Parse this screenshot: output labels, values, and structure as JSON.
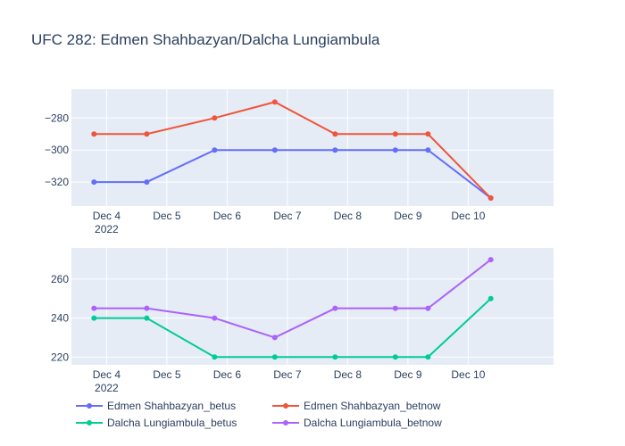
{
  "chart_data": {
    "type": "line",
    "title": "UFC 282: Edmen Shahbazyan/Dalcha Lungiambula",
    "x_tick_labels": [
      {
        "date": "2022-12-04",
        "label": "Dec 4",
        "sub": "2022"
      },
      {
        "date": "2022-12-05",
        "label": "Dec 5",
        "sub": ""
      },
      {
        "date": "2022-12-06",
        "label": "Dec 6",
        "sub": ""
      },
      {
        "date": "2022-12-07",
        "label": "Dec 7",
        "sub": ""
      },
      {
        "date": "2022-12-08",
        "label": "Dec 8",
        "sub": ""
      },
      {
        "date": "2022-12-09",
        "label": "Dec 9",
        "sub": ""
      },
      {
        "date": "2022-12-10",
        "label": "Dec 10",
        "sub": ""
      }
    ],
    "x_range": [
      "2022-12-03T10:00",
      "2022-12-11T10:00"
    ],
    "x": [
      "2022-12-03T19:00",
      "2022-12-04T16:00",
      "2022-12-05T19:00",
      "2022-12-06T19:00",
      "2022-12-07T19:00",
      "2022-12-08T19:00",
      "2022-12-09T08:00",
      "2022-12-10T09:00"
    ],
    "panels": [
      {
        "ylim": [
          -335,
          -262
        ],
        "yticks": [
          -320,
          -300,
          -280
        ],
        "y_tick_labels": [
          "−320",
          "−300",
          "−280"
        ],
        "series": [
          {
            "name": "Edmen Shahbazyan_betus",
            "color": "#636efa",
            "values": [
              -320,
              -320,
              -300,
              -300,
              -300,
              -300,
              -300,
              -330
            ]
          },
          {
            "name": "Edmen Shahbazyan_betnow",
            "color": "#ef553b",
            "values": [
              -290,
              -290,
              -280,
              -270,
              -290,
              -290,
              -290,
              -330
            ]
          }
        ]
      },
      {
        "ylim": [
          216,
          276
        ],
        "yticks": [
          220,
          240,
          260
        ],
        "y_tick_labels": [
          "220",
          "240",
          "260"
        ],
        "series": [
          {
            "name": "Dalcha Lungiambula_betus",
            "color": "#00cc96",
            "values": [
              240,
              240,
              220,
              220,
              220,
              220,
              220,
              250
            ]
          },
          {
            "name": "Dalcha Lungiambula_betnow",
            "color": "#ab63fa",
            "values": [
              245,
              245,
              240,
              230,
              245,
              245,
              245,
              270
            ]
          }
        ]
      }
    ],
    "legend": {
      "placement": "bottom",
      "entries": [
        {
          "name": "Edmen Shahbazyan_betus",
          "color": "#636efa"
        },
        {
          "name": "Edmen Shahbazyan_betnow",
          "color": "#ef553b"
        },
        {
          "name": "Dalcha Lungiambula_betus",
          "color": "#00cc96"
        },
        {
          "name": "Dalcha Lungiambula_betnow",
          "color": "#ab63fa"
        }
      ]
    },
    "grid": true
  }
}
